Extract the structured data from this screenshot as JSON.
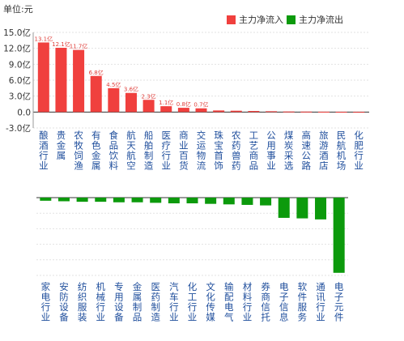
{
  "header": {
    "unit_label": "单位:元"
  },
  "legend": {
    "inflow": {
      "label": "主力净流入",
      "color": "#f0403e"
    },
    "outflow": {
      "label": "主力净流出",
      "color": "#0c9a0c"
    }
  },
  "chart_data": [
    {
      "type": "bar",
      "title": "",
      "ylabel": "单位:元",
      "yticks": [
        "15.0亿",
        "12.0亿",
        "9.0亿",
        "6.0亿",
        "3.0亿",
        "0.0",
        "-3.0亿"
      ],
      "ylim": [
        -3,
        15
      ],
      "grid": true,
      "legend_position": "top-right",
      "categories": [
        "酿酒行业",
        "贵金属",
        "农牧饲渔",
        "有色金属",
        "食品饮料",
        "航天航空",
        "船舶制造",
        "医疗行业",
        "商业百货",
        "交运物流",
        "珠宝首饰",
        "农药兽药",
        "工艺商品",
        "公用事业",
        "煤炭采选",
        "高速公路",
        "旅游酒店",
        "民航机场",
        "化肥行业"
      ],
      "values": [
        13.1,
        12.1,
        11.7,
        6.8,
        4.5,
        3.6,
        2.3,
        1.1,
        0.8,
        0.7,
        0.3,
        0.25,
        0.2,
        0.15,
        0.1,
        0.08,
        0.06,
        0.04,
        0.03
      ],
      "data_labels": [
        "13.1亿",
        "12.1亿",
        "11.7亿",
        "6.8亿",
        "4.5亿",
        "3.6亿",
        "2.3亿",
        "1.1亿",
        "0.8亿",
        "0.7亿",
        "",
        "",
        "",
        "",
        "",
        "",
        "",
        "",
        ""
      ]
    },
    {
      "type": "bar",
      "title": "",
      "categories": [
        "家电行业",
        "安防设备",
        "纺织服装",
        "机械行业",
        "专用设备",
        "金属制品",
        "医药制造",
        "汽车行业",
        "化工行业",
        "文化传媒",
        "输配电气",
        "材料行业",
        "券商信托",
        "电子信息",
        "软件服务",
        "通讯行业",
        "电子元件"
      ],
      "values": [
        -0.6,
        -0.7,
        -0.8,
        -0.8,
        -0.9,
        -0.9,
        -1.0,
        -1.1,
        -1.1,
        -1.2,
        -1.3,
        -1.4,
        -1.5,
        -3.9,
        -4.0,
        -4.2,
        -14.5
      ],
      "ylim": [
        -15,
        0
      ],
      "grid": true
    }
  ]
}
